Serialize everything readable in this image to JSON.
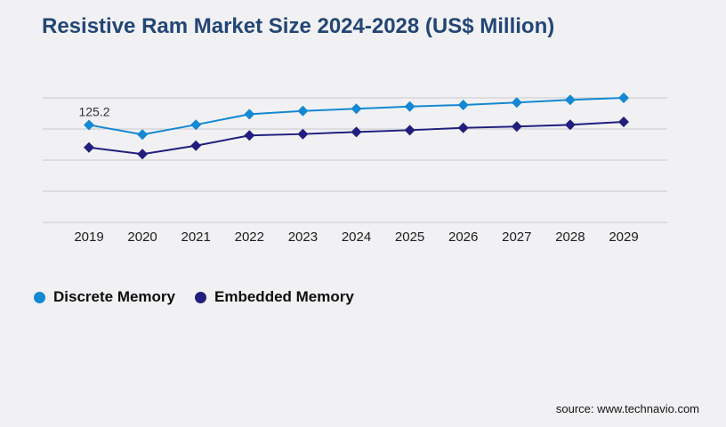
{
  "page": {
    "title": "Resistive Ram Market Size 2024-2028 (US$ Million)",
    "source": "source: www.technavio.com"
  },
  "colors": {
    "background": "#f1f1f4",
    "title": "#234674",
    "gridline": "#c9c9cd",
    "tick_label": "#1d1d1d",
    "discrete_memory": "#1488d2",
    "embedded_memory": "#211e7d"
  },
  "chart_data": {
    "type": "line",
    "title": "Resistive Ram Market Size 2024-2028 (US$ Million)",
    "categories": [
      "2019",
      "2020",
      "2021",
      "2022",
      "2023",
      "2024",
      "2025",
      "2026",
      "2027",
      "2028",
      "2029"
    ],
    "series": [
      {
        "name": "Discrete Memory",
        "color": "#1488d2",
        "marker": "diamond",
        "values": [
          125.2,
          112.9,
          125.5,
          139.0,
          143.2,
          146.0,
          148.9,
          150.9,
          154.0,
          157.4,
          160.0
        ]
      },
      {
        "name": "Embedded Memory",
        "color": "#211e7d",
        "marker": "diamond",
        "values": [
          96.3,
          87.7,
          98.6,
          111.7,
          113.5,
          116.2,
          118.5,
          121.5,
          123.1,
          125.4,
          129.1
        ]
      }
    ],
    "ylim": [
      0,
      160
    ],
    "gridline_values": [
      0,
      40,
      80,
      120,
      160
    ],
    "grid": "horizontal",
    "y_axis_labels_visible": false,
    "legend_position": "bottom-left",
    "annotations": [
      {
        "series": "Discrete Memory",
        "category": "2019",
        "text": "125.2"
      }
    ]
  }
}
